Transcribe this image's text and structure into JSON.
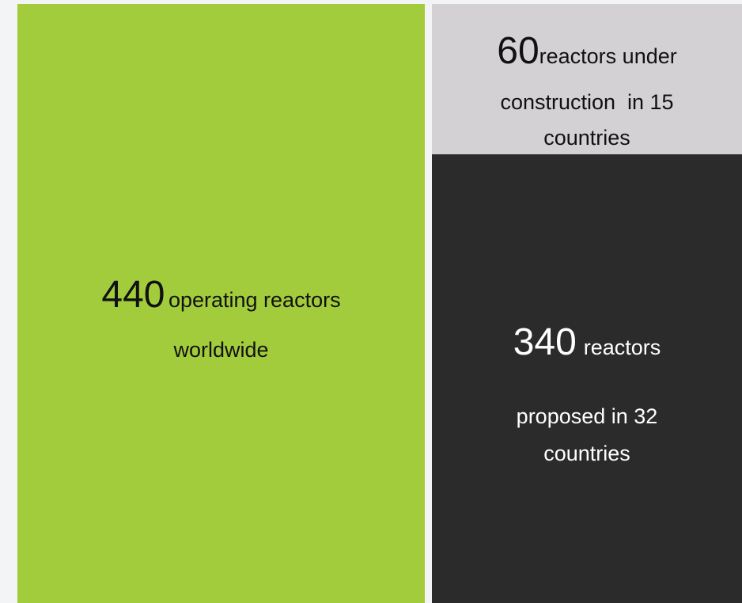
{
  "tiles": [
    {
      "number": 440,
      "lines": [
        "operating reactors",
        "worldwide"
      ]
    },
    {
      "number": 60,
      "lines": [
        "reactors under",
        "construction  in 15",
        "countries"
      ]
    },
    {
      "number": 340,
      "lines": [
        "reactors",
        "proposed in 32",
        "countries"
      ]
    }
  ]
}
